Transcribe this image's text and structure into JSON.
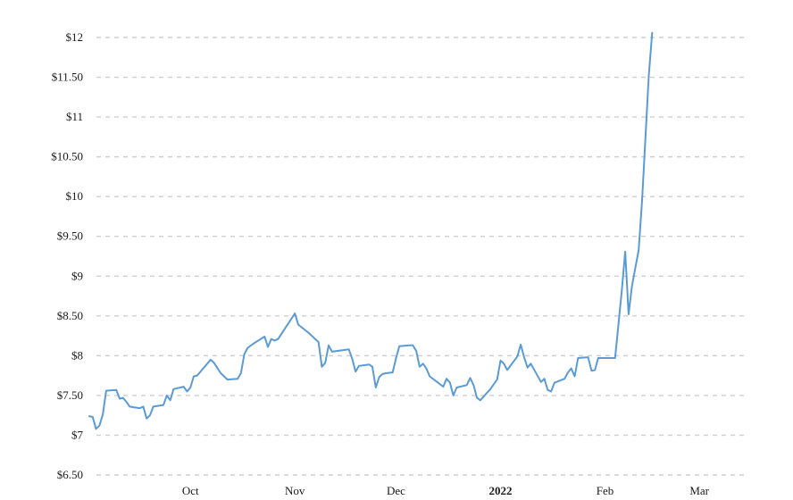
{
  "chart_data": {
    "type": "line",
    "title": "",
    "xlabel": "",
    "ylabel": "",
    "grid": true,
    "ylim": [
      6.5,
      12
    ],
    "xlim": [
      "2021-09-01",
      "2022-03-15"
    ],
    "x_ticks": [
      {
        "date": "2021-10-01",
        "label": "Oct",
        "bold": false
      },
      {
        "date": "2021-11-01",
        "label": "Nov",
        "bold": false
      },
      {
        "date": "2021-12-01",
        "label": "Dec",
        "bold": false
      },
      {
        "date": "2022-01-01",
        "label": "2022",
        "bold": true
      },
      {
        "date": "2022-02-01",
        "label": "Feb",
        "bold": false
      },
      {
        "date": "2022-03-01",
        "label": "Mar",
        "bold": false
      }
    ],
    "y_ticks": [
      {
        "value": 12,
        "label": "$12"
      },
      {
        "value": 11.5,
        "label": "$11.50"
      },
      {
        "value": 11,
        "label": "$11"
      },
      {
        "value": 10.5,
        "label": "$10.50"
      },
      {
        "value": 10,
        "label": "$10"
      },
      {
        "value": 9.5,
        "label": "$9.50"
      },
      {
        "value": 9,
        "label": "$9"
      },
      {
        "value": 8.5,
        "label": "$8.50"
      },
      {
        "value": 8,
        "label": "$8"
      },
      {
        "value": 7.5,
        "label": "$7.50"
      },
      {
        "value": 7,
        "label": "$7"
      },
      {
        "value": 6.5,
        "label": "$6.50"
      }
    ],
    "series": [
      {
        "color": "#5b9bd5",
        "points": [
          [
            "2021-09-01",
            7.24
          ],
          [
            "2021-09-02",
            7.23
          ],
          [
            "2021-09-03",
            7.08
          ],
          [
            "2021-09-04",
            7.12
          ],
          [
            "2021-09-05",
            7.26
          ],
          [
            "2021-09-06",
            7.56
          ],
          [
            "2021-09-09",
            7.57
          ],
          [
            "2021-09-10",
            7.46
          ],
          [
            "2021-09-11",
            7.47
          ],
          [
            "2021-09-12",
            7.42
          ],
          [
            "2021-09-13",
            7.36
          ],
          [
            "2021-09-16",
            7.34
          ],
          [
            "2021-09-17",
            7.36
          ],
          [
            "2021-09-18",
            7.21
          ],
          [
            "2021-09-19",
            7.25
          ],
          [
            "2021-09-20",
            7.36
          ],
          [
            "2021-09-23",
            7.38
          ],
          [
            "2021-09-24",
            7.5
          ],
          [
            "2021-09-25",
            7.44
          ],
          [
            "2021-09-26",
            7.58
          ],
          [
            "2021-09-29",
            7.61
          ],
          [
            "2021-09-30",
            7.55
          ],
          [
            "2021-10-01",
            7.6
          ],
          [
            "2021-10-02",
            7.74
          ],
          [
            "2021-10-03",
            7.75
          ],
          [
            "2021-10-07",
            7.95
          ],
          [
            "2021-10-08",
            7.91
          ],
          [
            "2021-10-10",
            7.78
          ],
          [
            "2021-10-12",
            7.7
          ],
          [
            "2021-10-15",
            7.71
          ],
          [
            "2021-10-16",
            7.78
          ],
          [
            "2021-10-17",
            8.02
          ],
          [
            "2021-10-18",
            8.1
          ],
          [
            "2021-10-20",
            8.16
          ],
          [
            "2021-10-23",
            8.24
          ],
          [
            "2021-10-24",
            8.11
          ],
          [
            "2021-10-25",
            8.21
          ],
          [
            "2021-10-26",
            8.19
          ],
          [
            "2021-10-27",
            8.21
          ],
          [
            "2021-11-01",
            8.53
          ],
          [
            "2021-11-02",
            8.39
          ],
          [
            "2021-11-05",
            8.29
          ],
          [
            "2021-11-08",
            8.17
          ],
          [
            "2021-11-09",
            7.86
          ],
          [
            "2021-11-10",
            7.91
          ],
          [
            "2021-11-11",
            8.13
          ],
          [
            "2021-11-12",
            8.05
          ],
          [
            "2021-11-17",
            8.08
          ],
          [
            "2021-11-18",
            7.96
          ],
          [
            "2021-11-19",
            7.8
          ],
          [
            "2021-11-20",
            7.87
          ],
          [
            "2021-11-23",
            7.89
          ],
          [
            "2021-11-24",
            7.86
          ],
          [
            "2021-11-25",
            7.6
          ],
          [
            "2021-11-26",
            7.73
          ],
          [
            "2021-11-27",
            7.77
          ],
          [
            "2021-11-28",
            7.78
          ],
          [
            "2021-11-30",
            7.79
          ],
          [
            "2021-12-01",
            7.97
          ],
          [
            "2021-12-02",
            8.12
          ],
          [
            "2021-12-05",
            8.13
          ],
          [
            "2021-12-06",
            8.13
          ],
          [
            "2021-12-07",
            8.06
          ],
          [
            "2021-12-08",
            7.86
          ],
          [
            "2021-12-09",
            7.9
          ],
          [
            "2021-12-10",
            7.84
          ],
          [
            "2021-12-11",
            7.74
          ],
          [
            "2021-12-15",
            7.61
          ],
          [
            "2021-12-16",
            7.71
          ],
          [
            "2021-12-17",
            7.66
          ],
          [
            "2021-12-18",
            7.5
          ],
          [
            "2021-12-19",
            7.6
          ],
          [
            "2021-12-22",
            7.63
          ],
          [
            "2021-12-23",
            7.72
          ],
          [
            "2021-12-24",
            7.63
          ],
          [
            "2021-12-25",
            7.47
          ],
          [
            "2021-12-26",
            7.44
          ],
          [
            "2021-12-29",
            7.58
          ],
          [
            "2021-12-31",
            7.7
          ],
          [
            "2022-01-01",
            7.94
          ],
          [
            "2022-01-02",
            7.9
          ],
          [
            "2022-01-03",
            7.82
          ],
          [
            "2022-01-06",
            7.99
          ],
          [
            "2022-01-07",
            8.14
          ],
          [
            "2022-01-08",
            7.98
          ],
          [
            "2022-01-09",
            7.85
          ],
          [
            "2022-01-10",
            7.9
          ],
          [
            "2022-01-13",
            7.67
          ],
          [
            "2022-01-14",
            7.71
          ],
          [
            "2022-01-15",
            7.57
          ],
          [
            "2022-01-16",
            7.55
          ],
          [
            "2022-01-17",
            7.66
          ],
          [
            "2022-01-20",
            7.71
          ],
          [
            "2022-01-21",
            7.79
          ],
          [
            "2022-01-22",
            7.84
          ],
          [
            "2022-01-23",
            7.74
          ],
          [
            "2022-01-24",
            7.97
          ],
          [
            "2022-01-27",
            7.98
          ],
          [
            "2022-01-28",
            7.81
          ],
          [
            "2022-01-29",
            7.82
          ],
          [
            "2022-01-30",
            7.97
          ],
          [
            "2022-02-01",
            7.97
          ],
          [
            "2022-02-04",
            7.97
          ],
          [
            "2022-02-06",
            8.82
          ],
          [
            "2022-02-07",
            9.31
          ],
          [
            "2022-02-08",
            8.52
          ],
          [
            "2022-02-09",
            8.88
          ],
          [
            "2022-02-11",
            9.33
          ],
          [
            "2022-02-12",
            9.95
          ],
          [
            "2022-02-14",
            11.52
          ],
          [
            "2022-02-15",
            12.06
          ]
        ]
      }
    ]
  }
}
